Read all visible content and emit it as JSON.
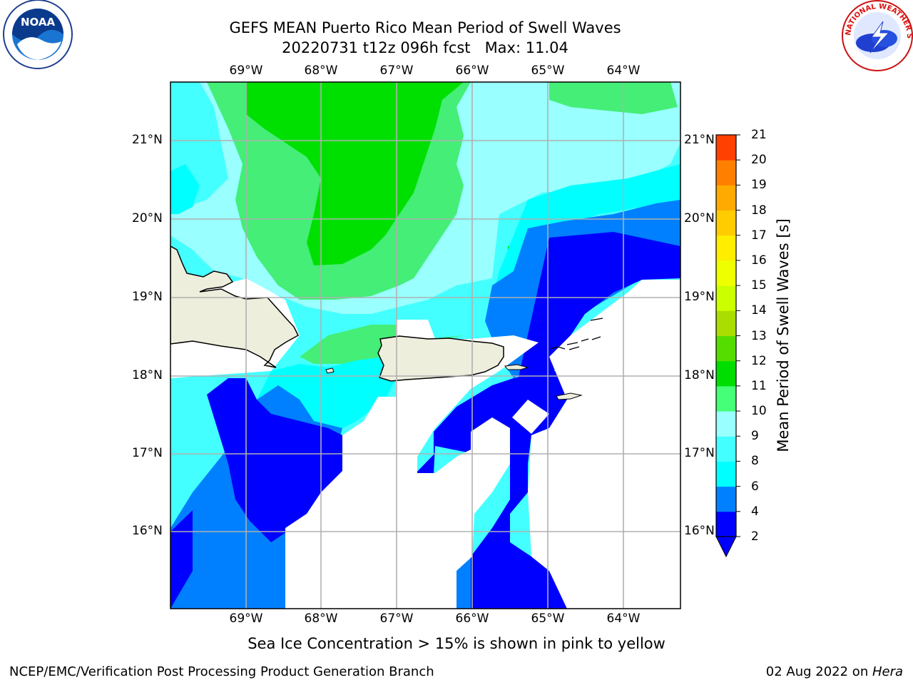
{
  "title": {
    "line1": "GEFS MEAN Puerto Rico Mean Period of Swell Waves",
    "line2": "20220731 t12z 096h fcst   Max: 11.04"
  },
  "map": {
    "lon_labels": [
      "69°W",
      "68°W",
      "67°W",
      "66°W",
      "65°W",
      "64°W"
    ],
    "lat_labels": [
      "21°N",
      "20°N",
      "19°N",
      "18°N",
      "17°N",
      "16°N"
    ],
    "lon_range": [
      -70,
      -63.25
    ],
    "lat_range": [
      15,
      21.75
    ],
    "grid": true,
    "land_color": "#eeeedd",
    "no_data_color": "#ffffff",
    "features": [
      "Hispaniola",
      "Puerto Rico",
      "Virgin Islands"
    ]
  },
  "colorbar": {
    "label": "Mean Period of Swell Waves [s]",
    "ticks": [
      "2",
      "4",
      "6",
      "8",
      "9",
      "10",
      "11",
      "12",
      "13",
      "14",
      "15",
      "16",
      "17",
      "18",
      "19",
      "20",
      "21"
    ],
    "colors": [
      "#0000ff",
      "#0080ff",
      "#00ffff",
      "#44ffff",
      "#99ffff",
      "#44ff77",
      "#00dd00",
      "#55dd00",
      "#aadd00",
      "#ccff00",
      "#eeff00",
      "#ffee00",
      "#ffcc00",
      "#ffaa00",
      "#ff8000",
      "#ff4000",
      "#ff0000"
    ],
    "extend": "min"
  },
  "caption": "Sea Ice Concentration > 15% is shown in pink to yellow",
  "footer": {
    "left": "NCEP/EMC/Verification Post Processing Product Generation Branch",
    "date": "02 Aug 2022 on ",
    "machine": "Hera"
  },
  "logos": {
    "noaa": "NOAA",
    "nws": "NATIONAL WEATHER SERVICE",
    "noaa_ring": "NATIONAL OCEANIC AND ATMOSPHERIC ADMINISTRATION · U.S. DEPARTMENT OF COMMERCE"
  }
}
